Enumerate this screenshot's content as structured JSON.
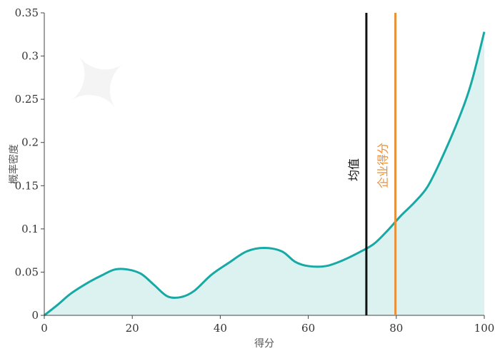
{
  "chart_data": {
    "type": "area",
    "xlabel": "得分",
    "ylabel": "概率密度",
    "xlim": [
      0,
      100
    ],
    "ylim": [
      0,
      0.35
    ],
    "x_ticks": [
      0,
      20,
      40,
      60,
      80,
      100
    ],
    "y_ticks": [
      "0",
      "0.05",
      "0.1",
      "0.15",
      "0.2",
      "0.25",
      "0.3",
      "0.35"
    ],
    "curve": {
      "color": "#18a9a4",
      "fill": "#dcf2f1",
      "points": [
        [
          0,
          0.0
        ],
        [
          3,
          0.012
        ],
        [
          6,
          0.025
        ],
        [
          10,
          0.038
        ],
        [
          13,
          0.046
        ],
        [
          16,
          0.053
        ],
        [
          19,
          0.053
        ],
        [
          22,
          0.048
        ],
        [
          25,
          0.035
        ],
        [
          28,
          0.022
        ],
        [
          31,
          0.021
        ],
        [
          34,
          0.028
        ],
        [
          38,
          0.047
        ],
        [
          42,
          0.061
        ],
        [
          46,
          0.074
        ],
        [
          50,
          0.078
        ],
        [
          54,
          0.074
        ],
        [
          57,
          0.062
        ],
        [
          60,
          0.057
        ],
        [
          64,
          0.057
        ],
        [
          68,
          0.064
        ],
        [
          72,
          0.074
        ],
        [
          75,
          0.083
        ],
        [
          78,
          0.098
        ],
        [
          81,
          0.115
        ],
        [
          84,
          0.13
        ],
        [
          87,
          0.148
        ],
        [
          90,
          0.178
        ],
        [
          94,
          0.225
        ],
        [
          97,
          0.268
        ],
        [
          100,
          0.328
        ]
      ]
    },
    "vlines": [
      {
        "name": "均值",
        "x": 73.2,
        "color": "#111111"
      },
      {
        "name": "企业得分",
        "x": 79.8,
        "color": "#e8913a"
      }
    ],
    "grid": false
  }
}
